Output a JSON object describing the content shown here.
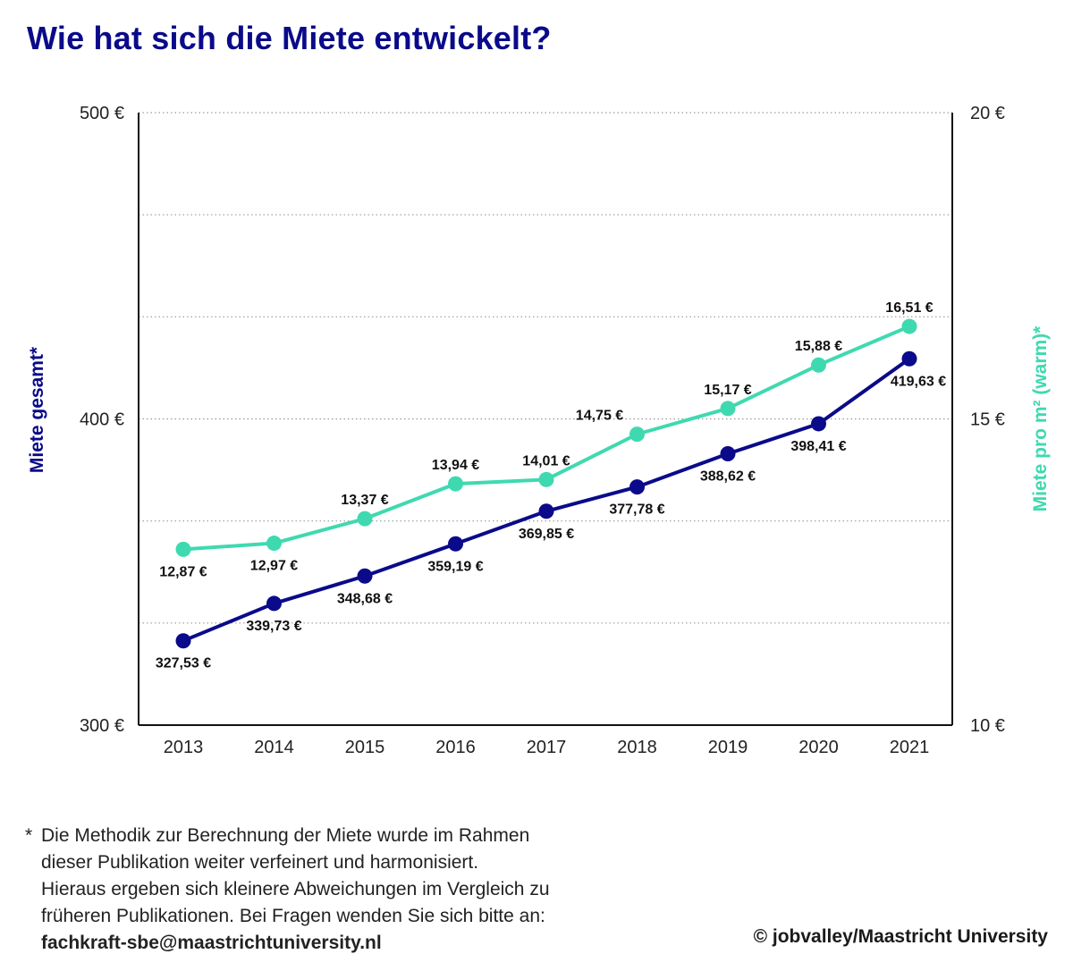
{
  "title": "Wie hat sich die Miete entwickelt?",
  "chart_data": {
    "type": "line",
    "categories": [
      "2013",
      "2014",
      "2015",
      "2016",
      "2017",
      "2018",
      "2019",
      "2020",
      "2021"
    ],
    "y_left": {
      "label": "Miete gesamt*",
      "range": [
        300,
        500
      ],
      "ticks": [
        300,
        400,
        500
      ],
      "tick_labels": [
        "300 €",
        "400 €",
        "500 €"
      ]
    },
    "y_right": {
      "label": "Miete pro m² (warm)*",
      "range": [
        10,
        20
      ],
      "ticks": [
        10,
        15,
        20
      ],
      "tick_labels": [
        "10 €",
        "15 €",
        "20 €"
      ]
    },
    "grid": "horizontal dotted",
    "series": [
      {
        "name": "Miete gesamt*",
        "axis": "left",
        "color": "#0a0a8a",
        "values": [
          327.53,
          339.73,
          348.68,
          359.19,
          369.85,
          377.78,
          388.62,
          398.41,
          419.63
        ],
        "labels": [
          "327,53 €",
          "339,73 €",
          "348,68 €",
          "359,19 €",
          "369,85 €",
          "377,78 €",
          "388,62 €",
          "398,41 €",
          "419,63 €"
        ]
      },
      {
        "name": "Miete pro m² (warm)*",
        "axis": "right",
        "color": "#3fd9b0",
        "values": [
          12.87,
          12.97,
          13.37,
          13.94,
          14.01,
          14.75,
          15.17,
          15.88,
          16.51
        ],
        "labels": [
          "12,87 €",
          "12,97 €",
          "13,37 €",
          "13,94 €",
          "14,01 €",
          "14,75 €",
          "15,17 €",
          "15,88 €",
          "16,51 €"
        ]
      }
    ]
  },
  "footnote": {
    "marker": "*",
    "lines": [
      "Die Methodik zur Berechnung der Miete wurde im Rahmen",
      "dieser Publikation weiter verfeinert und harmonisiert.",
      "Hieraus ergeben sich kleinere Abweichungen im Vergleich zu",
      "früheren Publikationen. Bei Fragen wenden Sie sich bitte an:"
    ],
    "email": "fachkraft-sbe@maastrichtuniversity.nl"
  },
  "copyright": "© jobvalley/Maastricht University"
}
